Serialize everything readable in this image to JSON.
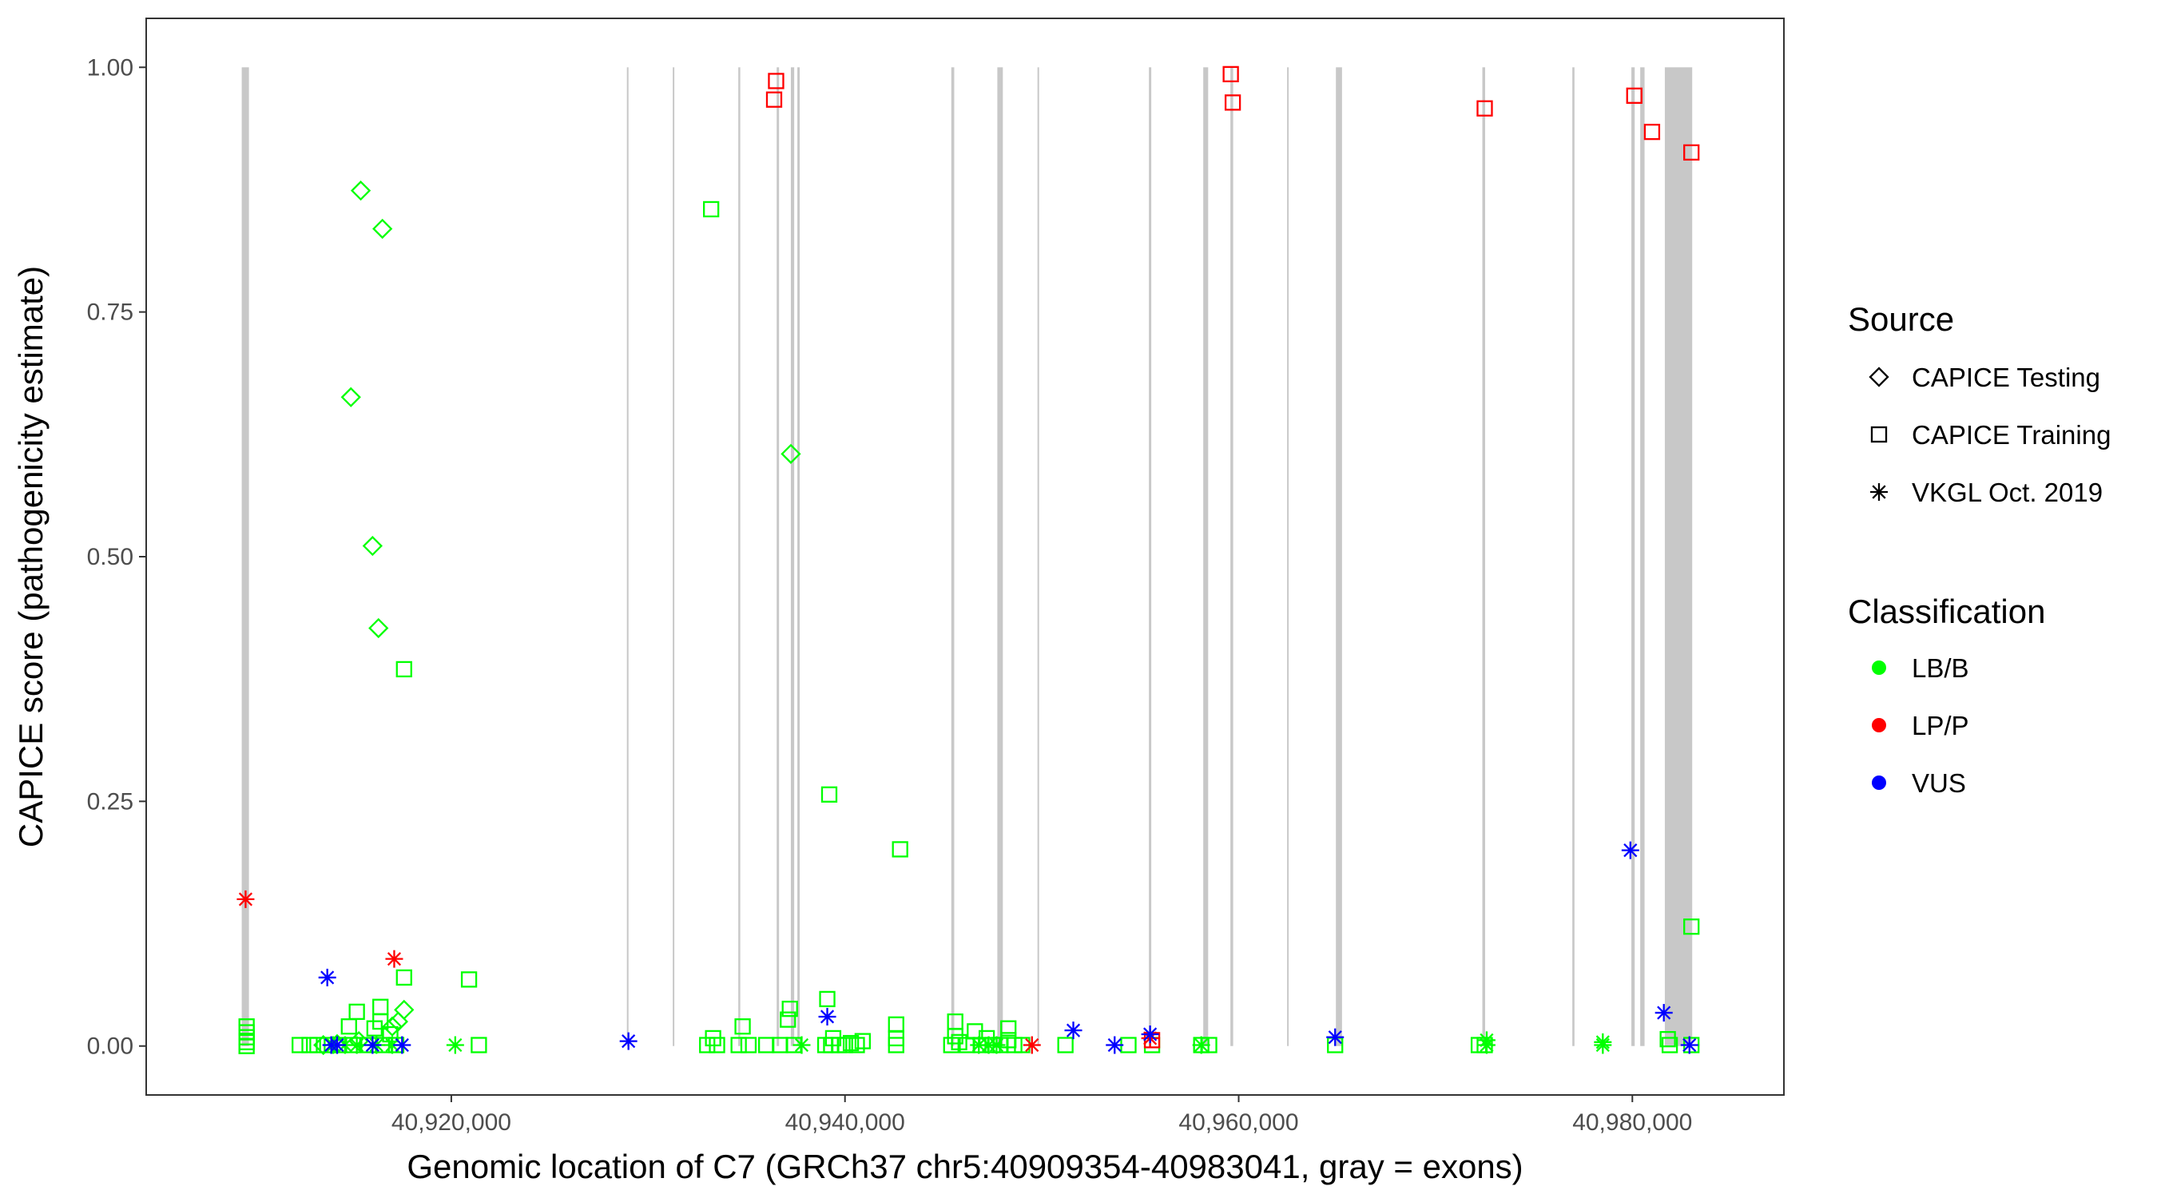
{
  "chart_data": {
    "type": "scatter",
    "xlabel": "Genomic location of C7 (GRCh37 chr5:40909354-40983041, gray = exons)",
    "ylabel": "CAPICE score (pathogenicity estimate)",
    "xlim": [
      40904500,
      40987700
    ],
    "ylim": [
      -0.05,
      1.05
    ],
    "x_ticks": [
      40920000,
      40940000,
      40960000,
      40980000
    ],
    "x_tick_labels": [
      "40,920,000",
      "40,940,000",
      "40,960,000",
      "40,980,000"
    ],
    "y_ticks": [
      0,
      0.25,
      0.5,
      0.75,
      1.0
    ],
    "y_tick_labels": [
      "0.00",
      "0.25",
      "0.50",
      "0.75",
      "1.00"
    ],
    "grid": false,
    "legend_position": "right",
    "exons": [
      [
        40909354,
        40909720
      ],
      [
        40928920,
        40928990
      ],
      [
        40931250,
        40931330
      ],
      [
        40934580,
        40934680
      ],
      [
        40936530,
        40936650
      ],
      [
        40937250,
        40937420
      ],
      [
        40937580,
        40937700
      ],
      [
        40945400,
        40945550
      ],
      [
        40947740,
        40948020
      ],
      [
        40949780,
        40949860
      ],
      [
        40955440,
        40955560
      ],
      [
        40958200,
        40958450
      ],
      [
        40959580,
        40959720
      ],
      [
        40962460,
        40962540
      ],
      [
        40964940,
        40965250
      ],
      [
        40972380,
        40972520
      ],
      [
        40976950,
        40977060
      ],
      [
        40979950,
        40980120
      ],
      [
        40980400,
        40980620
      ],
      [
        40981650,
        40983041
      ]
    ],
    "source_legend": {
      "title": "Source",
      "entries": [
        {
          "label": "CAPICE Testing",
          "shape": "diamond"
        },
        {
          "label": "CAPICE Training",
          "shape": "square"
        },
        {
          "label": "VKGL Oct. 2019",
          "shape": "asterisk"
        }
      ]
    },
    "classification_legend": {
      "title": "Classification",
      "entries": [
        {
          "label": "LB/B",
          "color": "#00ff00"
        },
        {
          "label": "LP/P",
          "color": "#ff0000"
        },
        {
          "label": "VUS",
          "color": "#0000ff"
        }
      ]
    },
    "series": [
      {
        "source": "CAPICE Testing",
        "class": "LB/B",
        "points": [
          [
            40915400,
            0.874
          ],
          [
            40916500,
            0.835
          ],
          [
            40914900,
            0.663
          ],
          [
            40916000,
            0.511
          ],
          [
            40916300,
            0.427
          ],
          [
            40937250,
            0.605
          ],
          [
            40917600,
            0.037
          ],
          [
            40917300,
            0.025
          ],
          [
            40917000,
            0.02
          ],
          [
            40915300,
            0.005
          ],
          [
            40914200,
            0.002
          ],
          [
            40913500,
            0.001
          ]
        ]
      },
      {
        "source": "CAPICE Training",
        "class": "LB/B",
        "points": [
          [
            40909600,
            0.02
          ],
          [
            40909600,
            0.014
          ],
          [
            40909600,
            0.009
          ],
          [
            40909600,
            0.004
          ],
          [
            40909600,
            0.0
          ],
          [
            40917600,
            0.385
          ],
          [
            40917600,
            0.07
          ],
          [
            40915200,
            0.035
          ],
          [
            40916400,
            0.04
          ],
          [
            40916400,
            0.025
          ],
          [
            40916100,
            0.018
          ],
          [
            40916900,
            0.012
          ],
          [
            40914800,
            0.02
          ],
          [
            40912300,
            0.001
          ],
          [
            40912800,
            0.001
          ],
          [
            40913200,
            0.001
          ],
          [
            40913700,
            0.001
          ],
          [
            40914300,
            0.001
          ],
          [
            40915000,
            0.001
          ],
          [
            40915800,
            0.001
          ],
          [
            40916600,
            0.001
          ],
          [
            40917200,
            0.001
          ],
          [
            40920900,
            0.068
          ],
          [
            40921400,
            0.001
          ],
          [
            40933200,
            0.855
          ],
          [
            40939200,
            0.257
          ],
          [
            40942800,
            0.201
          ],
          [
            40933000,
            0.001
          ],
          [
            40933500,
            0.001
          ],
          [
            40933300,
            0.008
          ],
          [
            40934800,
            0.02
          ],
          [
            40934600,
            0.001
          ],
          [
            40935100,
            0.001
          ],
          [
            40936000,
            0.001
          ],
          [
            40936700,
            0.001
          ],
          [
            40937200,
            0.038
          ],
          [
            40937100,
            0.027
          ],
          [
            40937400,
            0.001
          ],
          [
            40939100,
            0.048
          ],
          [
            40939000,
            0.001
          ],
          [
            40939400,
            0.008
          ],
          [
            40939300,
            0.001
          ],
          [
            40939700,
            0.001
          ],
          [
            40940000,
            0.001
          ],
          [
            40940300,
            0.003
          ],
          [
            40940600,
            0.001
          ],
          [
            40940900,
            0.005
          ],
          [
            40942600,
            0.022
          ],
          [
            40942600,
            0.008
          ],
          [
            40942600,
            0.001
          ],
          [
            40945400,
            0.001
          ],
          [
            40945600,
            0.025
          ],
          [
            40945600,
            0.01
          ],
          [
            40945800,
            0.004
          ],
          [
            40946200,
            0.001
          ],
          [
            40946600,
            0.015
          ],
          [
            40946900,
            0.001
          ],
          [
            40947200,
            0.008
          ],
          [
            40947500,
            0.001
          ],
          [
            40947900,
            0.001
          ],
          [
            40948300,
            0.018
          ],
          [
            40948300,
            0.006
          ],
          [
            40948600,
            0.001
          ],
          [
            40949000,
            0.001
          ],
          [
            40951200,
            0.001
          ],
          [
            40954400,
            0.001
          ],
          [
            40955600,
            0.001
          ],
          [
            40958100,
            0.001
          ],
          [
            40958500,
            0.001
          ],
          [
            40964900,
            0.001
          ],
          [
            40972200,
            0.001
          ],
          [
            40972500,
            0.001
          ],
          [
            40981800,
            0.007
          ],
          [
            40981900,
            0.001
          ],
          [
            40983000,
            0.122
          ],
          [
            40983000,
            0.001
          ]
        ]
      },
      {
        "source": "VKGL Oct. 2019",
        "class": "LB/B",
        "points": [
          [
            40914000,
            0.001
          ],
          [
            40914600,
            0.001
          ],
          [
            40915200,
            0.001
          ],
          [
            40916200,
            0.001
          ],
          [
            40917000,
            0.001
          ],
          [
            40920200,
            0.001
          ],
          [
            40937800,
            0.001
          ],
          [
            40946800,
            0.001
          ],
          [
            40947300,
            0.001
          ],
          [
            40947700,
            0.001
          ],
          [
            40958100,
            0.001
          ],
          [
            40972600,
            0.001
          ],
          [
            40972600,
            0.006
          ],
          [
            40978500,
            0.001
          ],
          [
            40978500,
            0.004
          ]
        ]
      },
      {
        "source": "CAPICE Training",
        "class": "LP/P",
        "points": [
          [
            40936500,
            0.986
          ],
          [
            40936400,
            0.967
          ],
          [
            40959600,
            0.993
          ],
          [
            40959700,
            0.964
          ],
          [
            40972500,
            0.958
          ],
          [
            40980100,
            0.971
          ],
          [
            40981000,
            0.934
          ],
          [
            40983000,
            0.913
          ],
          [
            40955600,
            0.006
          ]
        ]
      },
      {
        "source": "VKGL Oct. 2019",
        "class": "LP/P",
        "points": [
          [
            40909550,
            0.15
          ],
          [
            40917100,
            0.089
          ],
          [
            40949500,
            0.001
          ],
          [
            40955500,
            0.008
          ]
        ]
      },
      {
        "source": "VKGL Oct. 2019",
        "class": "VUS",
        "points": [
          [
            40913700,
            0.07
          ],
          [
            40913900,
            0.001
          ],
          [
            40914200,
            0.001
          ],
          [
            40916000,
            0.001
          ],
          [
            40917500,
            0.001
          ],
          [
            40929000,
            0.005
          ],
          [
            40939100,
            0.03
          ],
          [
            40951600,
            0.016
          ],
          [
            40953700,
            0.001
          ],
          [
            40955500,
            0.012
          ],
          [
            40964900,
            0.009
          ],
          [
            40979900,
            0.2
          ],
          [
            40981600,
            0.034
          ],
          [
            40982900,
            0.001
          ]
        ]
      }
    ]
  }
}
